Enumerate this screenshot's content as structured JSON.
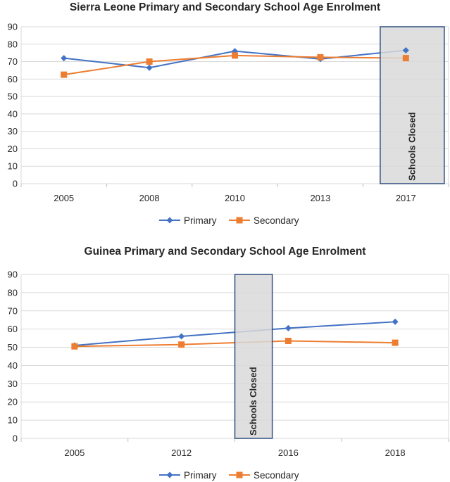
{
  "chart_data": [
    {
      "type": "line",
      "title": "Sierra Leone Primary and Secondary School Age Enrolment",
      "categories": [
        "2005",
        "2008",
        "2010",
        "2013",
        "2017"
      ],
      "ylim": [
        0,
        90
      ],
      "yticks": [
        0,
        10,
        20,
        30,
        40,
        50,
        60,
        70,
        80,
        90
      ],
      "grid": true,
      "legend": "bottom",
      "series": [
        {
          "name": "Primary",
          "color": "#4472C4",
          "marker": "diamond",
          "values": [
            72,
            66.5,
            76,
            71.5,
            76.5
          ]
        },
        {
          "name": "Secondary",
          "color": "#ED7D31",
          "marker": "square",
          "values": [
            62.5,
            70,
            73.5,
            72.5,
            72
          ]
        }
      ],
      "annotation": {
        "label": "Schools Closed",
        "from_category": 3.7,
        "to_category": 4.45
      }
    },
    {
      "type": "line",
      "title": "Guinea Primary and Secondary School Age Enrolment",
      "categories": [
        "2005",
        "2012",
        "2016",
        "2018"
      ],
      "ylim": [
        0,
        90
      ],
      "yticks": [
        0,
        10,
        20,
        30,
        40,
        50,
        60,
        70,
        80,
        90
      ],
      "grid": true,
      "legend": "bottom",
      "series": [
        {
          "name": "Primary",
          "color": "#4472C4",
          "marker": "diamond",
          "values": [
            51,
            56,
            60.5,
            64
          ]
        },
        {
          "name": "Secondary",
          "color": "#ED7D31",
          "marker": "square",
          "values": [
            50.5,
            51.5,
            53.5,
            52.5
          ]
        }
      ],
      "annotation": {
        "label": "Schools Closed",
        "from_category": 1.5,
        "to_category": 1.85
      }
    }
  ]
}
